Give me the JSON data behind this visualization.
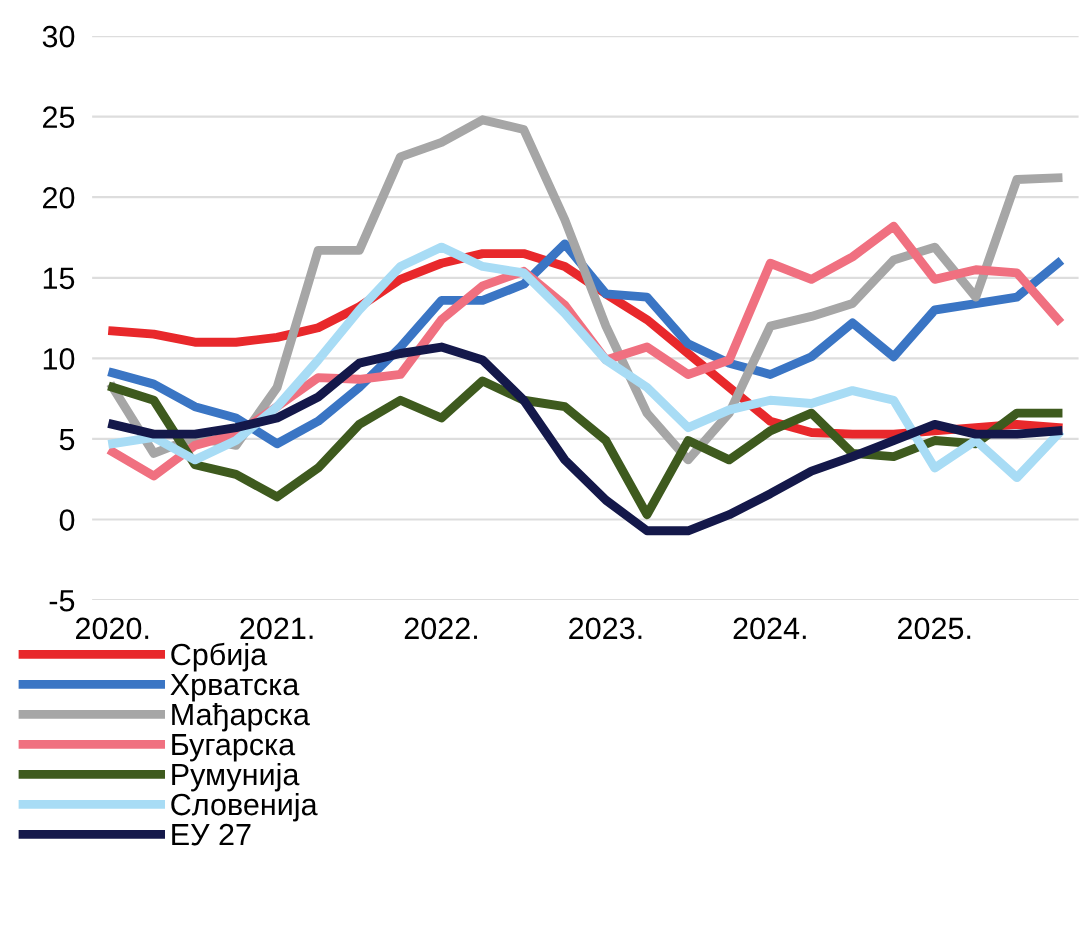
{
  "chart_data": {
    "type": "line",
    "categories": [
      "2020.",
      null,
      null,
      null,
      "2021.",
      null,
      null,
      null,
      "2022.",
      null,
      null,
      null,
      "2023.",
      null,
      null,
      null,
      "2024.",
      null,
      null,
      null,
      "2025.",
      null,
      null,
      null
    ],
    "ylim": [
      -5,
      30
    ],
    "yticks": [
      -5,
      0,
      5,
      10,
      15,
      20,
      25,
      30
    ],
    "grid": "y",
    "legend": "bottom left",
    "marker": "none",
    "line_style": "solid",
    "series": [
      {
        "name": "Србија",
        "color": "#e8282b",
        "values": [
          11.7,
          11.5,
          11.0,
          11.0,
          11.3,
          11.9,
          13.2,
          14.9,
          15.9,
          16.5,
          16.5,
          15.7,
          14.0,
          12.4,
          10.3,
          8.2,
          6.1,
          5.4,
          5.3,
          5.3,
          5.5,
          5.7,
          5.9,
          5.7
        ]
      },
      {
        "name": "Хрватска",
        "color": "#3a75c4",
        "values": [
          9.1,
          8.4,
          7.0,
          6.3,
          4.7,
          6.1,
          8.2,
          10.7,
          13.6,
          13.6,
          14.6,
          17.1,
          14.0,
          13.8,
          10.9,
          9.7,
          9.0,
          10.1,
          12.2,
          10.1,
          13.0,
          13.4,
          13.8,
          15.9
        ]
      },
      {
        "name": "Мађарска",
        "color": "#a6a6a6",
        "values": [
          8.2,
          4.1,
          5.1,
          4.6,
          8.2,
          16.7,
          16.7,
          22.5,
          23.4,
          24.8,
          24.2,
          18.6,
          12.0,
          6.6,
          3.7,
          6.6,
          12.0,
          12.6,
          13.4,
          16.1,
          16.9,
          13.8,
          21.1,
          21.2
        ]
      },
      {
        "name": "Бугарска",
        "color": "#f07080",
        "values": [
          4.2,
          2.7,
          4.6,
          5.3,
          7.0,
          8.8,
          8.7,
          9.0,
          12.4,
          14.5,
          15.4,
          13.3,
          9.9,
          10.7,
          9.0,
          9.9,
          15.9,
          14.9,
          16.3,
          18.2,
          14.9,
          15.5,
          15.3,
          12.4
        ]
      },
      {
        "name": "Румунија",
        "color": "#3e5a1e",
        "values": [
          8.2,
          7.4,
          3.4,
          2.8,
          1.4,
          3.2,
          5.9,
          7.4,
          6.3,
          8.6,
          7.4,
          7.0,
          4.9,
          0.3,
          4.9,
          3.7,
          5.5,
          6.6,
          4.1,
          3.9,
          4.9,
          4.7,
          6.6,
          6.6
        ]
      },
      {
        "name": "Словенија",
        "color": "#a8dcf5",
        "values": [
          4.7,
          5.1,
          3.7,
          4.9,
          7.0,
          9.9,
          13.0,
          15.7,
          16.9,
          15.7,
          15.3,
          12.8,
          9.9,
          8.2,
          5.7,
          6.8,
          7.4,
          7.2,
          8.0,
          7.4,
          3.2,
          4.9,
          2.6,
          5.3
        ]
      },
      {
        "name": "ЕУ 27",
        "color": "#14184a",
        "values": [
          5.9,
          5.3,
          5.3,
          5.7,
          6.3,
          7.6,
          9.7,
          10.3,
          10.7,
          9.9,
          7.4,
          3.7,
          1.2,
          -0.7,
          -0.7,
          0.3,
          1.6,
          3.0,
          3.9,
          4.9,
          5.9,
          5.3,
          5.3,
          5.5
        ]
      }
    ]
  }
}
